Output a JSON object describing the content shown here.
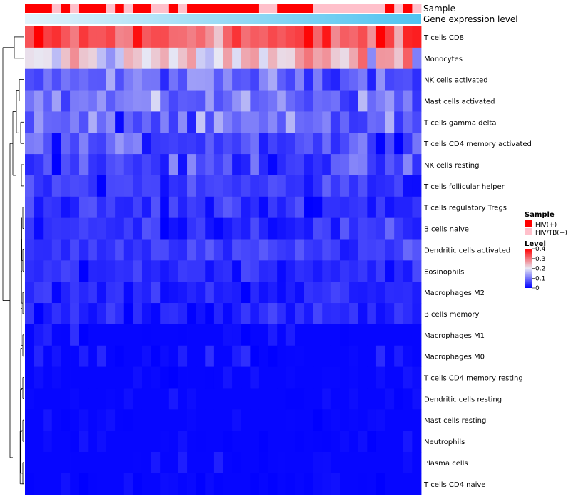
{
  "chart_data": {
    "type": "heatmap",
    "title": "",
    "annotation_rows": [
      "Sample",
      "Gene expression level"
    ],
    "rows": [
      "T cells CD8",
      "Monocytes",
      "NK cells activated",
      "Mast cells activated",
      "T cells gamma delta",
      "T cells CD4 memory activated",
      "NK cells resting",
      "T cells follicular helper",
      "T cells regulatory  Tregs",
      "B cells naive",
      "Dendritic cells activated",
      "Eosinophils",
      "Macrophages M2",
      "B cells memory",
      "Macrophages M1",
      "Macrophages M0",
      "T cells CD4 memory resting",
      "Dendritic cells resting",
      "Mast cells resting",
      "Neutrophils",
      "Plasma cells",
      "T cells CD4 naive"
    ],
    "n_samples": 44,
    "sample_groups": [
      "HIV(+)",
      "HIV(+)",
      "HIV(+)",
      "HIV/TB(+)",
      "HIV(+)",
      "HIV/TB(+)",
      "HIV(+)",
      "HIV(+)",
      "HIV(+)",
      "HIV/TB(+)",
      "HIV(+)",
      "HIV/TB(+)",
      "HIV(+)",
      "HIV(+)",
      "HIV/TB(+)",
      "HIV/TB(+)",
      "HIV(+)",
      "HIV/TB(+)",
      "HIV(+)",
      "HIV(+)",
      "HIV(+)",
      "HIV(+)",
      "HIV(+)",
      "HIV(+)",
      "HIV(+)",
      "HIV(+)",
      "HIV/TB(+)",
      "HIV/TB(+)",
      "HIV(+)",
      "HIV(+)",
      "HIV(+)",
      "HIV(+)",
      "HIV/TB(+)",
      "HIV/TB(+)",
      "HIV/TB(+)",
      "HIV/TB(+)",
      "HIV/TB(+)",
      "HIV/TB(+)",
      "HIV/TB(+)",
      "HIV/TB(+)",
      "HIV(+)",
      "HIV/TB(+)",
      "HIV(+)",
      "HIV/TB(+)"
    ],
    "row_means": [
      0.32,
      0.22,
      0.09,
      0.1,
      0.08,
      0.07,
      0.06,
      0.05,
      0.04,
      0.04,
      0.05,
      0.04,
      0.03,
      0.03,
      0.02,
      0.02,
      0.01,
      0.01,
      0.01,
      0.01,
      0.02,
      0.01
    ],
    "row_variability": [
      0.09,
      0.1,
      0.05,
      0.06,
      0.07,
      0.05,
      0.05,
      0.04,
      0.04,
      0.04,
      0.03,
      0.03,
      0.03,
      0.03,
      0.02,
      0.02,
      0.01,
      0.01,
      0.01,
      0.01,
      0.02,
      0.01
    ],
    "color_scale": {
      "min": 0,
      "max": 0.4,
      "low_color": "#0000ff",
      "mid_color": "#e8e8f4",
      "high_color": "#ff0000"
    },
    "expression_gradient": {
      "start_color": "#e3f3fb",
      "end_color": "#4fc3f0"
    },
    "legend": {
      "sample_title": "Sample",
      "sample_entries": [
        {
          "label": "HIV(+)",
          "color": "#ff0000"
        },
        {
          "label": "HIV/TB(+)",
          "color": "#ffc0cb"
        }
      ],
      "level_title": "Level",
      "level_ticks": [
        {
          "value": 0.4,
          "label": "0.4"
        },
        {
          "value": 0.3,
          "label": "0.3"
        },
        {
          "value": 0.2,
          "label": "0.2"
        },
        {
          "value": 0.1,
          "label": "0.1"
        },
        {
          "value": 0,
          "label": "0"
        }
      ],
      "placement": "right"
    },
    "dendrogram": "left"
  }
}
